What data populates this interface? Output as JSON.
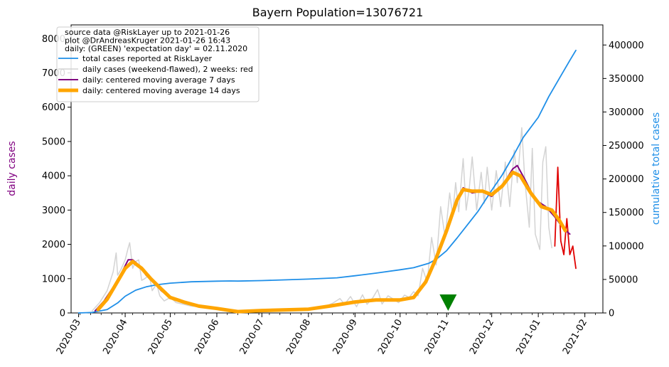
{
  "chart_data": {
    "type": "line",
    "title": "Bayern Population=13076721",
    "ylabel_left": "daily cases",
    "ylabel_right": "cumulative total cases",
    "ylim_left": [
      0,
      8400
    ],
    "ylim_right": [
      0,
      430000
    ],
    "xlim": [
      "2020-02-25",
      "2021-02-13"
    ],
    "left_ticks": [
      "0",
      "1000",
      "2000",
      "3000",
      "4000",
      "5000",
      "6000",
      "7000",
      "8000"
    ],
    "right_ticks": [
      "0",
      "50000",
      "100000",
      "150000",
      "200000",
      "250000",
      "300000",
      "350000",
      "400000"
    ],
    "x_ticks": [
      "2020-03",
      "2020-04",
      "2020-05",
      "2020-06",
      "2020-07",
      "2020-08",
      "2020-09",
      "2020-10",
      "2020-11",
      "2020-12",
      "2021-01",
      "2021-02"
    ],
    "x_tick_dates": [
      "2020-03-01",
      "2020-04-01",
      "2020-05-01",
      "2020-06-01",
      "2020-07-01",
      "2020-08-01",
      "2020-09-01",
      "2020-10-01",
      "2020-11-01",
      "2020-12-01",
      "2021-01-01",
      "2021-02-01"
    ],
    "colors": {
      "cumulative": "#1f8fe8",
      "daily": "#d3d3d3",
      "daily_recent": "#e00000",
      "ma7": "#800080",
      "ma14": "#ffa500",
      "marker": "#008000",
      "right_axis_label": "#1f8fe8",
      "left_axis_label": "#800080"
    },
    "legend": {
      "placement": "upper-left",
      "header": [
        "source data @RiskLayer up to 2021-01-26",
        "plot @DrAndreasKruger 2021-01-26 16:43",
        "daily: (GREEN) 'expectation day' = 02.11.2020"
      ],
      "entries": [
        "total cases reported at RiskLayer",
        "daily cases (weekend-flawed), 2 weeks: red",
        "daily: centered moving average 7 days",
        "daily: centered moving average 14 days"
      ]
    },
    "expectation_day": "2020-11-02",
    "series": [
      {
        "key": "cumulative",
        "axis": "right",
        "points": [
          [
            "2020-03-01",
            0
          ],
          [
            "2020-03-10",
            700
          ],
          [
            "2020-03-20",
            5000
          ],
          [
            "2020-03-27",
            15000
          ],
          [
            "2020-04-01",
            25000
          ],
          [
            "2020-04-08",
            34000
          ],
          [
            "2020-04-15",
            39000
          ],
          [
            "2020-04-22",
            42000
          ],
          [
            "2020-05-01",
            44500
          ],
          [
            "2020-05-15",
            46500
          ],
          [
            "2020-06-01",
            47500
          ],
          [
            "2020-06-10",
            47800
          ],
          [
            "2020-06-15",
            47600
          ],
          [
            "2020-07-01",
            48300
          ],
          [
            "2020-08-01",
            50500
          ],
          [
            "2020-08-20",
            52500
          ],
          [
            "2020-09-01",
            55500
          ],
          [
            "2020-09-15",
            59500
          ],
          [
            "2020-10-01",
            64500
          ],
          [
            "2020-10-10",
            67500
          ],
          [
            "2020-10-20",
            74000
          ],
          [
            "2020-10-25",
            80000
          ],
          [
            "2020-11-01",
            93000
          ],
          [
            "2020-11-08",
            112000
          ],
          [
            "2020-11-15",
            132000
          ],
          [
            "2020-11-22",
            152000
          ],
          [
            "2020-12-01",
            183000
          ],
          [
            "2020-12-08",
            206000
          ],
          [
            "2020-12-15",
            233000
          ],
          [
            "2020-12-22",
            262000
          ],
          [
            "2021-01-01",
            292000
          ],
          [
            "2021-01-08",
            323000
          ],
          [
            "2021-01-15",
            350000
          ],
          [
            "2021-01-22",
            377000
          ],
          [
            "2021-01-26",
            392000
          ]
        ]
      },
      {
        "key": "daily",
        "axis": "left",
        "points": [
          [
            "2020-03-10",
            60
          ],
          [
            "2020-03-15",
            300
          ],
          [
            "2020-03-20",
            650
          ],
          [
            "2020-03-24",
            1200
          ],
          [
            "2020-03-26",
            1750
          ],
          [
            "2020-03-27",
            1100
          ],
          [
            "2020-03-29",
            1250
          ],
          [
            "2020-04-01",
            1550
          ],
          [
            "2020-04-03",
            1900
          ],
          [
            "2020-04-04",
            2050
          ],
          [
            "2020-04-06",
            1300
          ],
          [
            "2020-04-08",
            1500
          ],
          [
            "2020-04-10",
            1550
          ],
          [
            "2020-04-12",
            950
          ],
          [
            "2020-04-14",
            1000
          ],
          [
            "2020-04-17",
            1100
          ],
          [
            "2020-04-19",
            650
          ],
          [
            "2020-04-22",
            850
          ],
          [
            "2020-04-24",
            500
          ],
          [
            "2020-04-27",
            350
          ],
          [
            "2020-05-01",
            450
          ],
          [
            "2020-05-05",
            300
          ],
          [
            "2020-05-10",
            250
          ],
          [
            "2020-05-15",
            200
          ],
          [
            "2020-05-20",
            180
          ],
          [
            "2020-05-25",
            150
          ],
          [
            "2020-06-01",
            120
          ],
          [
            "2020-06-06",
            100
          ],
          [
            "2020-06-10",
            60
          ],
          [
            "2020-06-15",
            40
          ],
          [
            "2020-06-20",
            50
          ],
          [
            "2020-07-01",
            80
          ],
          [
            "2020-07-10",
            90
          ],
          [
            "2020-07-20",
            110
          ],
          [
            "2020-08-01",
            120
          ],
          [
            "2020-08-10",
            150
          ],
          [
            "2020-08-17",
            280
          ],
          [
            "2020-08-22",
            420
          ],
          [
            "2020-08-25",
            250
          ],
          [
            "2020-08-29",
            480
          ],
          [
            "2020-09-02",
            180
          ],
          [
            "2020-09-06",
            530
          ],
          [
            "2020-09-09",
            250
          ],
          [
            "2020-09-13",
            450
          ],
          [
            "2020-09-16",
            680
          ],
          [
            "2020-09-19",
            260
          ],
          [
            "2020-09-23",
            500
          ],
          [
            "2020-09-26",
            420
          ],
          [
            "2020-09-30",
            300
          ],
          [
            "2020-10-04",
            520
          ],
          [
            "2020-10-07",
            450
          ],
          [
            "2020-10-10",
            620
          ],
          [
            "2020-10-13",
            500
          ],
          [
            "2020-10-16",
            1300
          ],
          [
            "2020-10-19",
            900
          ],
          [
            "2020-10-22",
            2200
          ],
          [
            "2020-10-25",
            1400
          ],
          [
            "2020-10-28",
            3100
          ],
          [
            "2020-10-31",
            2200
          ],
          [
            "2020-11-03",
            3500
          ],
          [
            "2020-11-05",
            2850
          ],
          [
            "2020-11-07",
            3800
          ],
          [
            "2020-11-09",
            2950
          ],
          [
            "2020-11-12",
            4500
          ],
          [
            "2020-11-14",
            3000
          ],
          [
            "2020-11-16",
            3600
          ],
          [
            "2020-11-18",
            4550
          ],
          [
            "2020-11-21",
            3000
          ],
          [
            "2020-11-24",
            4100
          ],
          [
            "2020-11-26",
            3200
          ],
          [
            "2020-11-28",
            4250
          ],
          [
            "2020-12-01",
            3000
          ],
          [
            "2020-12-04",
            4150
          ],
          [
            "2020-12-07",
            3100
          ],
          [
            "2020-12-10",
            4400
          ],
          [
            "2020-12-13",
            3100
          ],
          [
            "2020-12-16",
            4750
          ],
          [
            "2020-12-18",
            3800
          ],
          [
            "2020-12-21",
            5400
          ],
          [
            "2020-12-23",
            3900
          ],
          [
            "2020-12-26",
            2500
          ],
          [
            "2020-12-28",
            4800
          ],
          [
            "2020-12-30",
            2300
          ],
          [
            "2021-01-02",
            1850
          ],
          [
            "2021-01-04",
            4400
          ],
          [
            "2021-01-06",
            4850
          ],
          [
            "2021-01-08",
            2500
          ],
          [
            "2021-01-10",
            1900
          ]
        ]
      },
      {
        "key": "daily_recent",
        "axis": "left",
        "points": [
          [
            "2021-01-12",
            1950
          ],
          [
            "2021-01-14",
            4250
          ],
          [
            "2021-01-16",
            2100
          ],
          [
            "2021-01-18",
            1700
          ],
          [
            "2021-01-20",
            2750
          ],
          [
            "2021-01-22",
            1700
          ],
          [
            "2021-01-24",
            1950
          ],
          [
            "2021-01-26",
            1300
          ]
        ]
      },
      {
        "key": "ma7",
        "axis": "left",
        "points": [
          [
            "2020-03-12",
            60
          ],
          [
            "2020-03-18",
            350
          ],
          [
            "2020-03-24",
            750
          ],
          [
            "2020-03-30",
            1200
          ],
          [
            "2020-04-03",
            1550
          ],
          [
            "2020-04-06",
            1550
          ],
          [
            "2020-04-10",
            1400
          ],
          [
            "2020-04-15",
            1100
          ],
          [
            "2020-04-20",
            900
          ],
          [
            "2020-04-25",
            650
          ],
          [
            "2020-05-01",
            450
          ],
          [
            "2020-05-10",
            300
          ],
          [
            "2020-05-20",
            200
          ],
          [
            "2020-06-01",
            130
          ],
          [
            "2020-06-10",
            80
          ],
          [
            "2020-06-15",
            50
          ],
          [
            "2020-07-01",
            80
          ],
          [
            "2020-08-01",
            130
          ],
          [
            "2020-08-15",
            220
          ],
          [
            "2020-09-01",
            330
          ],
          [
            "2020-09-15",
            390
          ],
          [
            "2020-10-01",
            400
          ],
          [
            "2020-10-10",
            480
          ],
          [
            "2020-10-18",
            950
          ],
          [
            "2020-10-25",
            1600
          ],
          [
            "2020-11-01",
            2400
          ],
          [
            "2020-11-07",
            3200
          ],
          [
            "2020-11-12",
            3650
          ],
          [
            "2020-11-18",
            3500
          ],
          [
            "2020-11-24",
            3550
          ],
          [
            "2020-12-01",
            3400
          ],
          [
            "2020-12-08",
            3700
          ],
          [
            "2020-12-15",
            4200
          ],
          [
            "2020-12-18",
            4300
          ],
          [
            "2020-12-23",
            3900
          ],
          [
            "2020-12-30",
            3300
          ],
          [
            "2021-01-06",
            3100
          ],
          [
            "2021-01-12",
            2800
          ],
          [
            "2021-01-18",
            2450
          ],
          [
            "2021-01-22",
            2300
          ]
        ]
      },
      {
        "key": "ma14",
        "axis": "left",
        "points": [
          [
            "2020-03-14",
            100
          ],
          [
            "2020-03-20",
            400
          ],
          [
            "2020-03-26",
            850
          ],
          [
            "2020-04-01",
            1300
          ],
          [
            "2020-04-06",
            1500
          ],
          [
            "2020-04-12",
            1300
          ],
          [
            "2020-04-18",
            1000
          ],
          [
            "2020-04-25",
            700
          ],
          [
            "2020-05-01",
            450
          ],
          [
            "2020-05-10",
            320
          ],
          [
            "2020-05-20",
            200
          ],
          [
            "2020-06-01",
            130
          ],
          [
            "2020-06-10",
            70
          ],
          [
            "2020-06-15",
            40
          ],
          [
            "2020-07-01",
            70
          ],
          [
            "2020-08-01",
            110
          ],
          [
            "2020-08-15",
            200
          ],
          [
            "2020-09-01",
            320
          ],
          [
            "2020-09-15",
            380
          ],
          [
            "2020-10-01",
            380
          ],
          [
            "2020-10-10",
            450
          ],
          [
            "2020-10-18",
            900
          ],
          [
            "2020-10-25",
            1600
          ],
          [
            "2020-11-01",
            2400
          ],
          [
            "2020-11-08",
            3300
          ],
          [
            "2020-11-12",
            3600
          ],
          [
            "2020-11-18",
            3550
          ],
          [
            "2020-11-25",
            3550
          ],
          [
            "2020-12-01",
            3450
          ],
          [
            "2020-12-08",
            3700
          ],
          [
            "2020-12-15",
            4100
          ],
          [
            "2020-12-20",
            4000
          ],
          [
            "2020-12-27",
            3500
          ],
          [
            "2021-01-03",
            3100
          ],
          [
            "2021-01-10",
            3000
          ],
          [
            "2021-01-15",
            2700
          ],
          [
            "2021-01-19",
            2400
          ]
        ]
      }
    ]
  }
}
